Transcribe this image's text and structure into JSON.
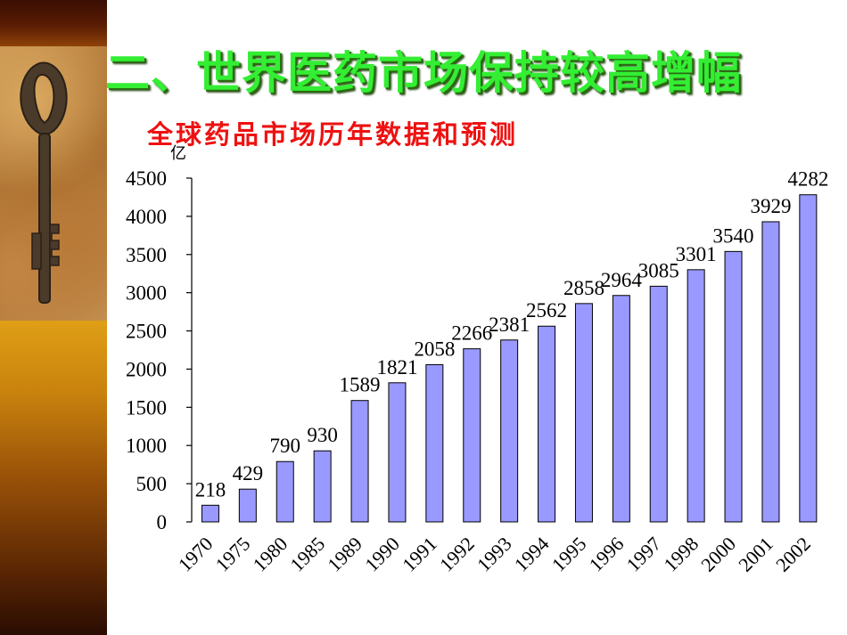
{
  "slide": {
    "title": "二、世界医药市场保持较高增幅"
  },
  "chart_data": {
    "type": "bar",
    "title": "全球药品市场历年数据和预测",
    "ylabel": "亿",
    "xlabel": "",
    "ylim": [
      0,
      4500
    ],
    "yticks": [
      0,
      500,
      1000,
      1500,
      2000,
      2500,
      3000,
      3500,
      4000,
      4500
    ],
    "categories": [
      "1970",
      "1975",
      "1980",
      "1985",
      "1989",
      "1990",
      "1991",
      "1992",
      "1993",
      "1994",
      "1995",
      "1996",
      "1997",
      "1998",
      "2000",
      "2001",
      "2002"
    ],
    "values": [
      218,
      429,
      790,
      930,
      1589,
      1821,
      2058,
      2266,
      2381,
      2562,
      2858,
      2964,
      3085,
      3301,
      3540,
      3929,
      4282
    ],
    "bar_color": "#9999ff",
    "grid": false,
    "legend": "none"
  }
}
